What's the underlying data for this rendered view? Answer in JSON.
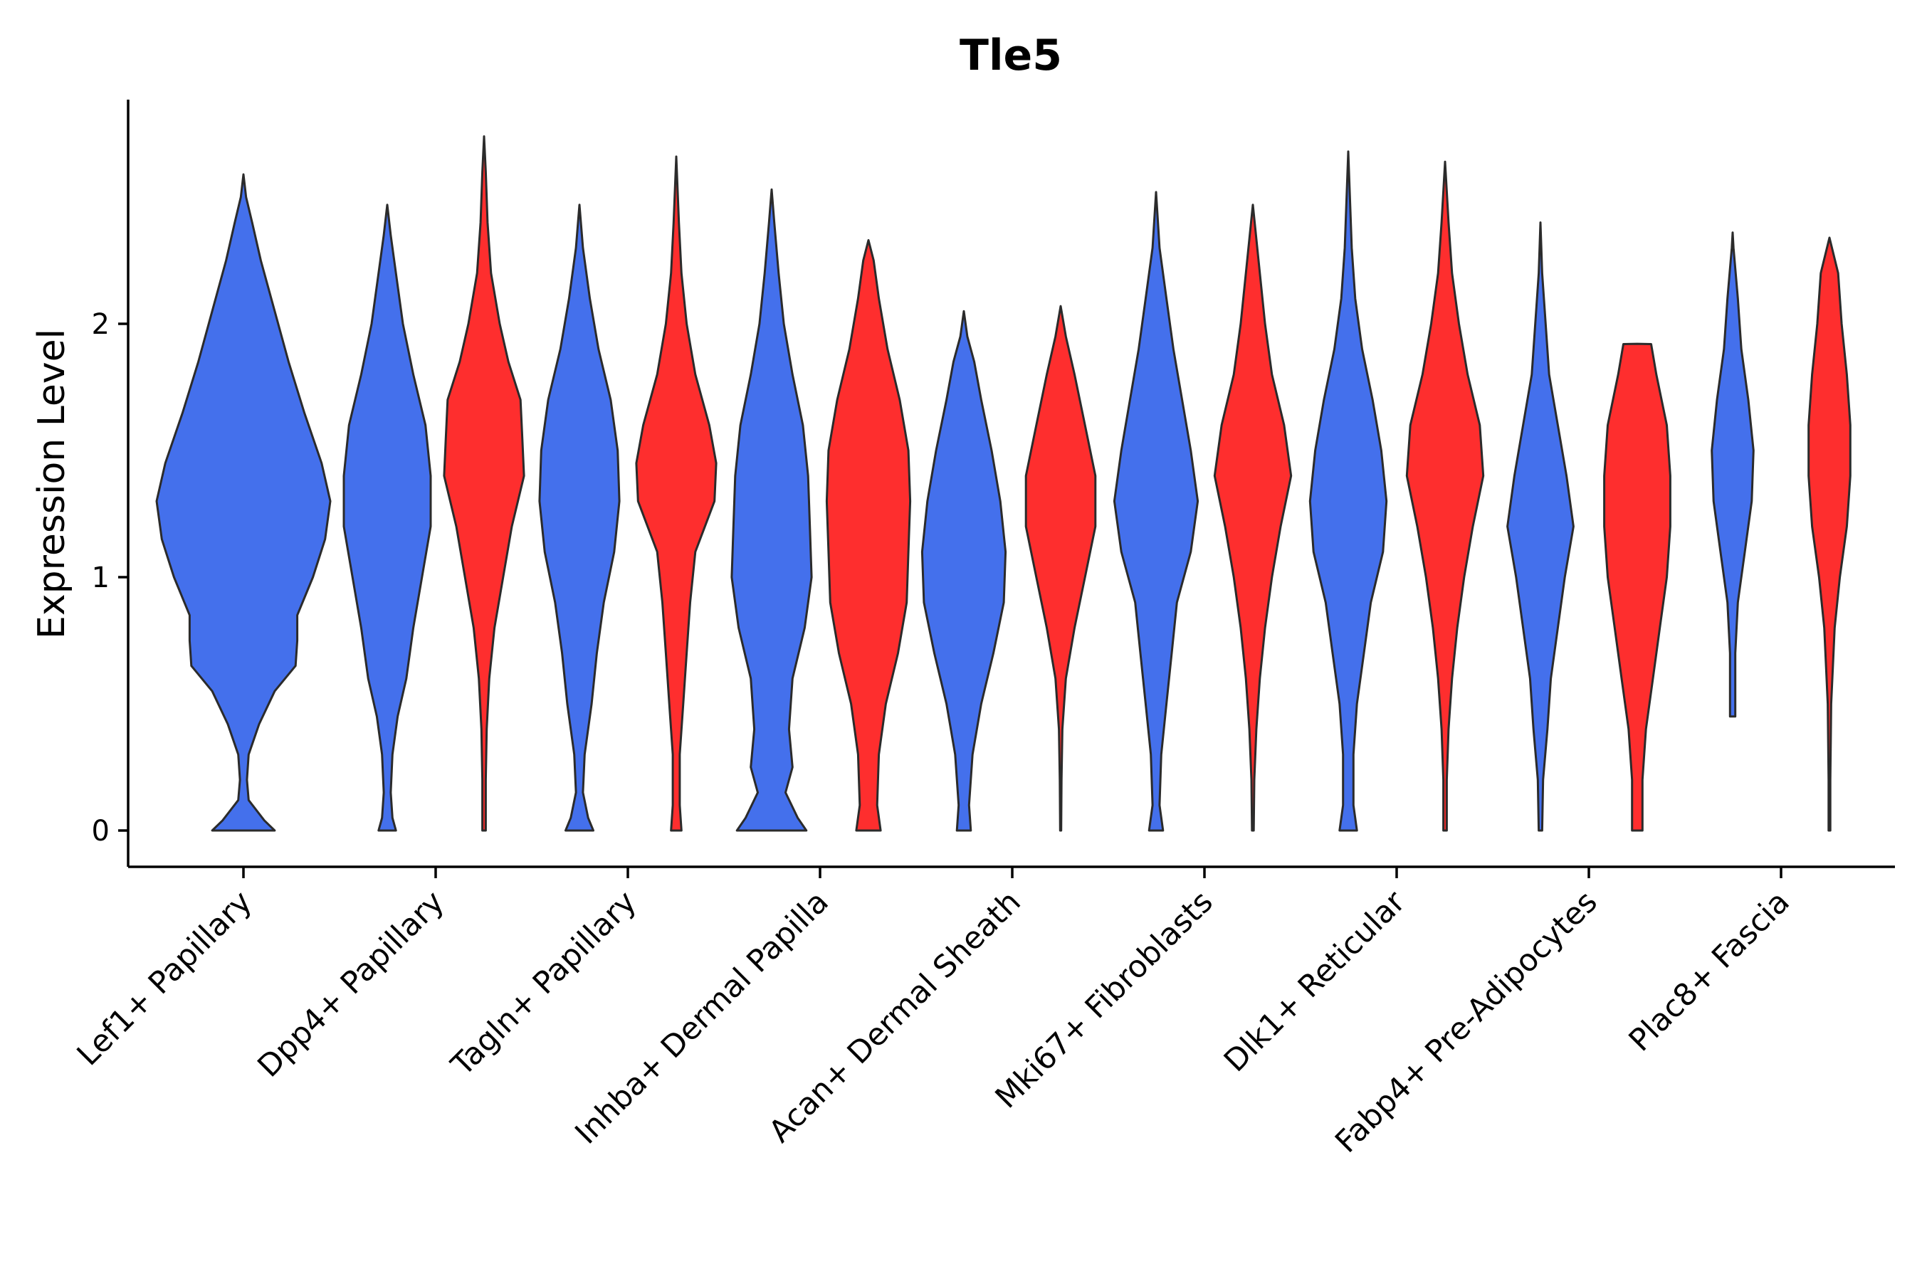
{
  "chart_data": {
    "type": "split-violin",
    "title": "Tle5",
    "xlabel": "",
    "ylabel": "Expression Level",
    "ylim": [
      -0.14,
      2.9
    ],
    "yticks": [
      0,
      1,
      2
    ],
    "colors": {
      "group_a": "#4470EC",
      "group_b": "#FE2E2E"
    },
    "categories": [
      "Lef1+ Papillary",
      "Dpp4+ Papillary",
      "Tagln+ Papillary",
      "Inhba+ Dermal Papilla",
      "Acan+ Dermal Sheath",
      "Mki67+ Fibroblasts",
      "Dlk1+ Reticular",
      "Fabp4+ Pre-Adipocytes",
      "Plac8+ Fascia"
    ],
    "violins": [
      {
        "category": "Lef1+ Papillary",
        "group": "a",
        "single": true,
        "ymax": 2.59,
        "profile": [
          [
            0,
            0.18
          ],
          [
            0.04,
            0.12
          ],
          [
            0.12,
            0.03
          ],
          [
            0.2,
            0.02
          ],
          [
            0.3,
            0.03
          ],
          [
            0.42,
            0.09
          ],
          [
            0.55,
            0.18
          ],
          [
            0.65,
            0.3
          ],
          [
            0.75,
            0.31
          ],
          [
            0.85,
            0.31
          ],
          [
            1.0,
            0.4
          ],
          [
            1.15,
            0.47
          ],
          [
            1.3,
            0.5
          ],
          [
            1.45,
            0.45
          ],
          [
            1.65,
            0.35
          ],
          [
            1.85,
            0.26
          ],
          [
            2.05,
            0.18
          ],
          [
            2.25,
            0.1
          ],
          [
            2.4,
            0.05
          ],
          [
            2.5,
            0.015
          ],
          [
            2.59,
            0
          ]
        ]
      },
      {
        "category": "Dpp4+ Papillary",
        "group": "a",
        "ymax": 2.47,
        "profile": [
          [
            0,
            0.05
          ],
          [
            0.05,
            0.03
          ],
          [
            0.15,
            0.02
          ],
          [
            0.3,
            0.03
          ],
          [
            0.45,
            0.06
          ],
          [
            0.6,
            0.11
          ],
          [
            0.8,
            0.15
          ],
          [
            1.0,
            0.2
          ],
          [
            1.2,
            0.25
          ],
          [
            1.4,
            0.25
          ],
          [
            1.6,
            0.22
          ],
          [
            1.8,
            0.15
          ],
          [
            2.0,
            0.09
          ],
          [
            2.2,
            0.05
          ],
          [
            2.35,
            0.02
          ],
          [
            2.47,
            0
          ]
        ]
      },
      {
        "category": "Dpp4+ Papillary",
        "group": "b",
        "ymax": 2.74,
        "profile": [
          [
            0,
            0.01
          ],
          [
            0.2,
            0.01
          ],
          [
            0.4,
            0.015
          ],
          [
            0.6,
            0.03
          ],
          [
            0.8,
            0.06
          ],
          [
            1.0,
            0.11
          ],
          [
            1.2,
            0.16
          ],
          [
            1.4,
            0.23
          ],
          [
            1.55,
            0.22
          ],
          [
            1.7,
            0.21
          ],
          [
            1.85,
            0.14
          ],
          [
            2.0,
            0.09
          ],
          [
            2.2,
            0.04
          ],
          [
            2.4,
            0.02
          ],
          [
            2.6,
            0.01
          ],
          [
            2.74,
            0
          ]
        ]
      },
      {
        "category": "Tagln+ Papillary",
        "group": "a",
        "ymax": 2.47,
        "profile": [
          [
            0,
            0.08
          ],
          [
            0.05,
            0.05
          ],
          [
            0.15,
            0.02
          ],
          [
            0.3,
            0.03
          ],
          [
            0.5,
            0.07
          ],
          [
            0.7,
            0.1
          ],
          [
            0.9,
            0.14
          ],
          [
            1.1,
            0.2
          ],
          [
            1.3,
            0.23
          ],
          [
            1.5,
            0.22
          ],
          [
            1.7,
            0.18
          ],
          [
            1.9,
            0.11
          ],
          [
            2.1,
            0.06
          ],
          [
            2.3,
            0.02
          ],
          [
            2.47,
            0
          ]
        ]
      },
      {
        "category": "Tagln+ Papillary",
        "group": "b",
        "ymax": 2.66,
        "profile": [
          [
            0,
            0.03
          ],
          [
            0.1,
            0.02
          ],
          [
            0.3,
            0.02
          ],
          [
            0.5,
            0.04
          ],
          [
            0.7,
            0.06
          ],
          [
            0.9,
            0.08
          ],
          [
            1.1,
            0.11
          ],
          [
            1.3,
            0.22
          ],
          [
            1.45,
            0.23
          ],
          [
            1.6,
            0.19
          ],
          [
            1.8,
            0.11
          ],
          [
            2.0,
            0.06
          ],
          [
            2.2,
            0.03
          ],
          [
            2.4,
            0.015
          ],
          [
            2.66,
            0
          ]
        ]
      },
      {
        "category": "Inhba+ Dermal Papilla",
        "group": "a",
        "ymax": 2.53,
        "profile": [
          [
            0,
            0.2
          ],
          [
            0.05,
            0.15
          ],
          [
            0.15,
            0.08
          ],
          [
            0.25,
            0.12
          ],
          [
            0.4,
            0.1
          ],
          [
            0.6,
            0.12
          ],
          [
            0.8,
            0.19
          ],
          [
            1.0,
            0.23
          ],
          [
            1.2,
            0.22
          ],
          [
            1.4,
            0.21
          ],
          [
            1.6,
            0.18
          ],
          [
            1.8,
            0.12
          ],
          [
            2.0,
            0.07
          ],
          [
            2.2,
            0.04
          ],
          [
            2.4,
            0.015
          ],
          [
            2.53,
            0
          ]
        ]
      },
      {
        "category": "Inhba+ Dermal Papilla",
        "group": "b",
        "ymax": 2.33,
        "profile": [
          [
            0,
            0.07
          ],
          [
            0.1,
            0.05
          ],
          [
            0.3,
            0.06
          ],
          [
            0.5,
            0.1
          ],
          [
            0.7,
            0.17
          ],
          [
            0.9,
            0.22
          ],
          [
            1.1,
            0.23
          ],
          [
            1.3,
            0.24
          ],
          [
            1.5,
            0.23
          ],
          [
            1.7,
            0.18
          ],
          [
            1.9,
            0.11
          ],
          [
            2.1,
            0.06
          ],
          [
            2.25,
            0.03
          ],
          [
            2.33,
            0
          ]
        ]
      },
      {
        "category": "Acan+ Dermal Sheath",
        "group": "a",
        "ymax": 2.05,
        "profile": [
          [
            0,
            0.04
          ],
          [
            0.1,
            0.03
          ],
          [
            0.3,
            0.05
          ],
          [
            0.5,
            0.1
          ],
          [
            0.7,
            0.17
          ],
          [
            0.9,
            0.23
          ],
          [
            1.1,
            0.24
          ],
          [
            1.3,
            0.21
          ],
          [
            1.5,
            0.16
          ],
          [
            1.7,
            0.1
          ],
          [
            1.85,
            0.06
          ],
          [
            1.95,
            0.02
          ],
          [
            2.05,
            0
          ]
        ]
      },
      {
        "category": "Acan+ Dermal Sheath",
        "group": "b",
        "ymax": 2.07,
        "profile": [
          [
            0,
            0.003
          ],
          [
            0.2,
            0.005
          ],
          [
            0.4,
            0.01
          ],
          [
            0.6,
            0.03
          ],
          [
            0.8,
            0.08
          ],
          [
            1.0,
            0.14
          ],
          [
            1.2,
            0.2
          ],
          [
            1.4,
            0.2
          ],
          [
            1.6,
            0.14
          ],
          [
            1.8,
            0.08
          ],
          [
            1.95,
            0.03
          ],
          [
            2.07,
            0
          ]
        ]
      },
      {
        "category": "Mki67+ Fibroblasts",
        "group": "a",
        "ymax": 2.52,
        "profile": [
          [
            0,
            0.04
          ],
          [
            0.1,
            0.02
          ],
          [
            0.3,
            0.03
          ],
          [
            0.5,
            0.06
          ],
          [
            0.7,
            0.09
          ],
          [
            0.9,
            0.12
          ],
          [
            1.1,
            0.2
          ],
          [
            1.3,
            0.24
          ],
          [
            1.5,
            0.2
          ],
          [
            1.7,
            0.15
          ],
          [
            1.9,
            0.1
          ],
          [
            2.1,
            0.06
          ],
          [
            2.3,
            0.02
          ],
          [
            2.52,
            0
          ]
        ]
      },
      {
        "category": "Mki67+ Fibroblasts",
        "group": "b",
        "ymax": 2.47,
        "profile": [
          [
            0,
            0.005
          ],
          [
            0.2,
            0.008
          ],
          [
            0.4,
            0.02
          ],
          [
            0.6,
            0.04
          ],
          [
            0.8,
            0.07
          ],
          [
            1.0,
            0.11
          ],
          [
            1.2,
            0.16
          ],
          [
            1.4,
            0.22
          ],
          [
            1.6,
            0.18
          ],
          [
            1.8,
            0.11
          ],
          [
            2.0,
            0.07
          ],
          [
            2.2,
            0.04
          ],
          [
            2.47,
            0
          ]
        ]
      },
      {
        "category": "Dlk1+ Reticular",
        "group": "a",
        "ymax": 2.68,
        "profile": [
          [
            0,
            0.05
          ],
          [
            0.1,
            0.03
          ],
          [
            0.3,
            0.03
          ],
          [
            0.5,
            0.05
          ],
          [
            0.7,
            0.09
          ],
          [
            0.9,
            0.13
          ],
          [
            1.1,
            0.2
          ],
          [
            1.3,
            0.22
          ],
          [
            1.5,
            0.19
          ],
          [
            1.7,
            0.14
          ],
          [
            1.9,
            0.08
          ],
          [
            2.1,
            0.04
          ],
          [
            2.3,
            0.02
          ],
          [
            2.68,
            0
          ]
        ]
      },
      {
        "category": "Dlk1+ Reticular",
        "group": "b",
        "ymax": 2.64,
        "profile": [
          [
            0,
            0.01
          ],
          [
            0.2,
            0.01
          ],
          [
            0.4,
            0.02
          ],
          [
            0.6,
            0.04
          ],
          [
            0.8,
            0.07
          ],
          [
            1.0,
            0.11
          ],
          [
            1.2,
            0.16
          ],
          [
            1.4,
            0.22
          ],
          [
            1.6,
            0.2
          ],
          [
            1.8,
            0.13
          ],
          [
            2.0,
            0.08
          ],
          [
            2.2,
            0.04
          ],
          [
            2.4,
            0.02
          ],
          [
            2.64,
            0
          ]
        ]
      },
      {
        "category": "Fabp4+ Pre-Adipocytes",
        "group": "a",
        "ymax": 2.4,
        "profile": [
          [
            0,
            0.01
          ],
          [
            0.2,
            0.015
          ],
          [
            0.4,
            0.04
          ],
          [
            0.6,
            0.06
          ],
          [
            0.8,
            0.1
          ],
          [
            1.0,
            0.14
          ],
          [
            1.2,
            0.19
          ],
          [
            1.4,
            0.15
          ],
          [
            1.6,
            0.1
          ],
          [
            1.8,
            0.05
          ],
          [
            2.0,
            0.03
          ],
          [
            2.2,
            0.01
          ],
          [
            2.4,
            0
          ]
        ]
      },
      {
        "category": "Fabp4+ Pre-Adipocytes",
        "group": "b",
        "ymax": 1.92,
        "profile": [
          [
            0,
            0.03
          ],
          [
            0.2,
            0.03
          ],
          [
            0.4,
            0.05
          ],
          [
            0.6,
            0.09
          ],
          [
            0.8,
            0.13
          ],
          [
            1.0,
            0.17
          ],
          [
            1.2,
            0.19
          ],
          [
            1.4,
            0.19
          ],
          [
            1.6,
            0.17
          ],
          [
            1.8,
            0.11
          ],
          [
            1.92,
            0.08
          ],
          [
            1.921,
            0
          ]
        ]
      },
      {
        "category": "Plac8+ Fascia",
        "group": "a",
        "ymax": 2.36,
        "profile": [
          [
            0.45,
            0.015
          ],
          [
            0.7,
            0.015
          ],
          [
            0.9,
            0.03
          ],
          [
            1.1,
            0.07
          ],
          [
            1.3,
            0.11
          ],
          [
            1.5,
            0.12
          ],
          [
            1.7,
            0.09
          ],
          [
            1.9,
            0.05
          ],
          [
            2.1,
            0.03
          ],
          [
            2.3,
            0.005
          ],
          [
            2.36,
            0
          ]
        ]
      },
      {
        "category": "Plac8+ Fascia",
        "group": "b",
        "ymax": 2.34,
        "profile": [
          [
            0,
            0.005
          ],
          [
            0.2,
            0.005
          ],
          [
            0.5,
            0.01
          ],
          [
            0.8,
            0.03
          ],
          [
            1.0,
            0.06
          ],
          [
            1.2,
            0.1
          ],
          [
            1.4,
            0.12
          ],
          [
            1.6,
            0.12
          ],
          [
            1.8,
            0.1
          ],
          [
            2.0,
            0.07
          ],
          [
            2.2,
            0.05
          ],
          [
            2.34,
            0
          ]
        ]
      }
    ]
  }
}
